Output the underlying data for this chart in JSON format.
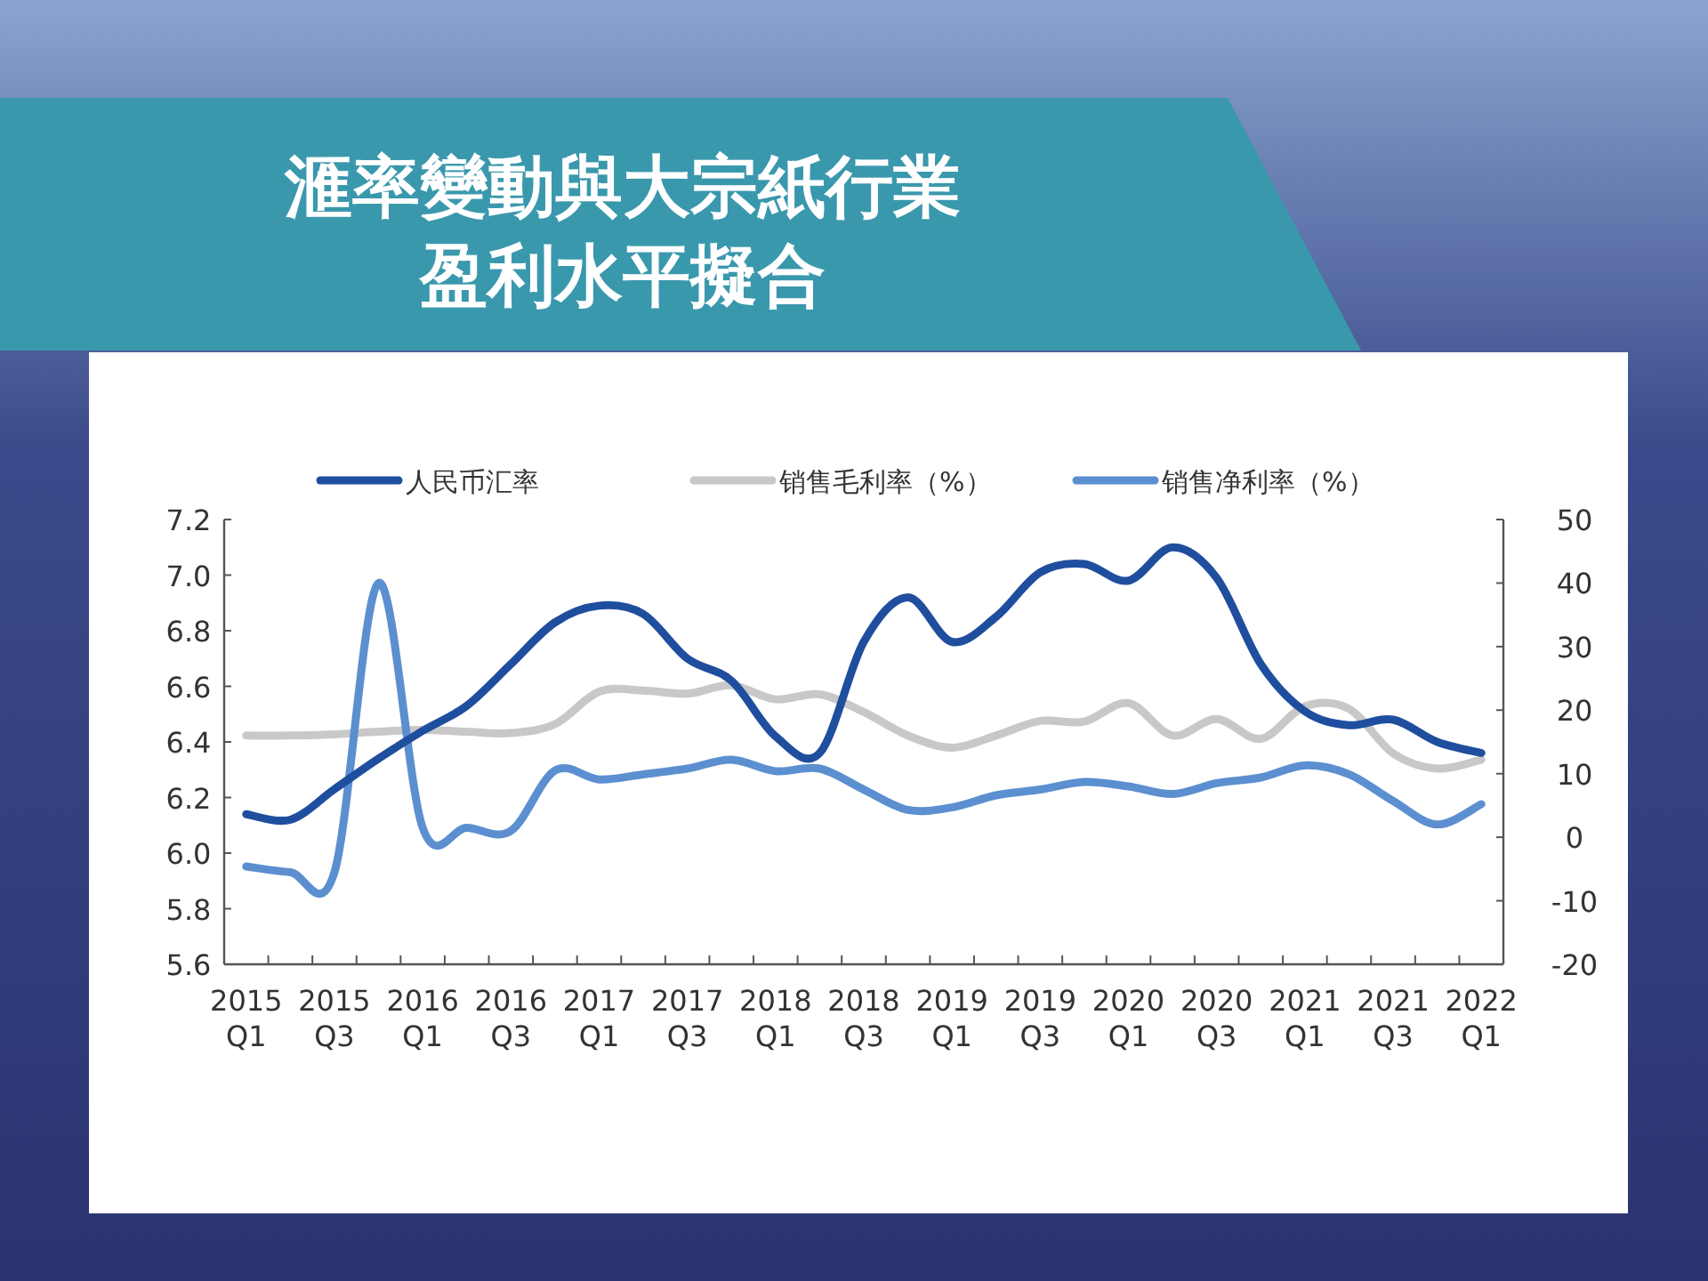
{
  "chart_data": {
    "type": "line",
    "title": "滙率變動與大宗紙行業",
    "subtitle": "盈利水平擬合",
    "categories": [
      "2015\nQ1",
      null,
      "2015\nQ3",
      null,
      "2016\nQ1",
      null,
      "2016\nQ3",
      null,
      "2017\nQ1",
      null,
      "2017\nQ3",
      null,
      "2018\nQ1",
      null,
      "2018\nQ3",
      null,
      "2019\nQ1",
      null,
      "2019\nQ3",
      null,
      "2020\nQ1",
      null,
      "2020\nQ3",
      null,
      "2021\nQ1",
      null,
      "2021\nQ3",
      null,
      "2022\nQ1"
    ],
    "series": [
      {
        "name": "人民币汇率",
        "color": "#1f4e9e",
        "values": [
          6.14,
          6.12,
          6.23,
          6.34,
          6.44,
          6.53,
          6.68,
          6.83,
          6.89,
          6.86,
          6.7,
          6.62,
          6.42,
          6.36,
          6.76,
          6.92,
          6.76,
          6.85,
          7.01,
          7.04,
          6.98,
          7.1,
          6.99,
          6.68,
          6.51,
          6.46,
          6.48,
          6.4,
          6.36
        ]
      },
      {
        "name": "销售毛利率（%）",
        "color": "#c8c8c8",
        "axis": "y2",
        "values": [
          16,
          16,
          16.2,
          16.6,
          16.9,
          16.6,
          16.4,
          17.8,
          22.9,
          23.1,
          22.6,
          23.9,
          21.7,
          22.5,
          19.7,
          16,
          14.1,
          16,
          18.3,
          18.2,
          21.1,
          16,
          18.6,
          15.5,
          20.6,
          20.2,
          13.2,
          10.8,
          12.2
        ]
      },
      {
        "name": "销售净利率（%）",
        "color": "#5b8fd0",
        "axis": "y2",
        "values": [
          -4.6,
          -5.5,
          -5.5,
          40,
          1.5,
          1.5,
          1.0,
          10.5,
          9.1,
          9.9,
          10.8,
          12.2,
          10.4,
          10.8,
          7.5,
          4.3,
          4.7,
          6.6,
          7.5,
          8.7,
          8.0,
          6.8,
          8.5,
          9.4,
          11.3,
          9.9,
          5.7,
          2.0,
          5.2
        ]
      }
    ],
    "ylim": [
      5.6,
      7.2
    ],
    "yticks": [
      5.6,
      5.8,
      {
        "value": 6,
        "label": "6.0"
      },
      6.2,
      6.4,
      6.6,
      6.8,
      {
        "value": 7,
        "label": "7.0"
      },
      7.2
    ],
    "y2lim": [
      -20,
      50
    ],
    "y2ticks": [
      -20,
      -10,
      0,
      10,
      20,
      30,
      40,
      50
    ],
    "grid": false,
    "legend": "top",
    "marker": "none",
    "line_style": "solid"
  }
}
